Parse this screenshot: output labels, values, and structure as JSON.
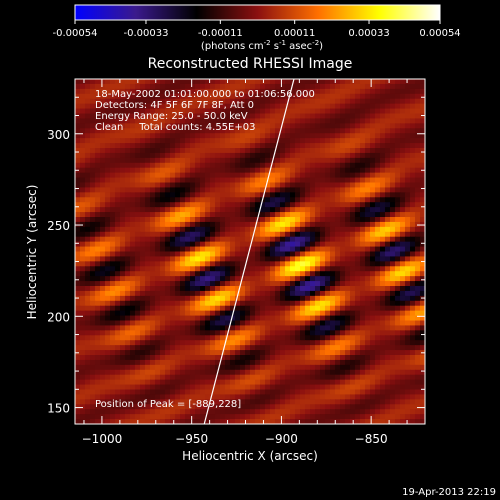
{
  "chart_data": {
    "type": "heatmap",
    "title": "Reconstructed RHESSI Image",
    "xlabel": "Heliocentric X (arcsec)",
    "ylabel": "Heliocentric Y (arcsec)",
    "xlim": [
      -1015,
      -820
    ],
    "ylim": [
      141,
      330
    ],
    "xticks": [
      -1000,
      -950,
      -900,
      -850
    ],
    "yticks": [
      150,
      200,
      250,
      300
    ],
    "colorbar": {
      "ticks": [
        "-0.00054",
        "-0.00033",
        "-0.00011",
        "0.00011",
        "0.00033",
        "0.00054"
      ],
      "values": [
        -0.00054,
        -0.00033,
        -0.00011,
        0.00011,
        0.00033,
        0.00054
      ],
      "range": [
        -0.00054,
        0.00054
      ],
      "units_text": "(photons cm",
      "units_exp1": "-2",
      "units_s": " s",
      "units_exp2": "-1",
      "units_asec": " asec",
      "units_exp3": "-2",
      "units_close": ")",
      "colormap": [
        "#0000ff",
        "#3a1a8c",
        "#000000",
        "#8b1010",
        "#ff7000",
        "#ffff00",
        "#ffffff"
      ]
    },
    "annotations": [
      "18-May-2002 01:01:00.000 to 01:06:56.000",
      "Detectors: 4F 5F 6F 7F 8F, Att 0",
      "Energy Range: 25.0 - 50.0 keV",
      "Clean     Total counts: 4.55E+03"
    ],
    "peak_label": "Position of Peak = [-889,228]",
    "peak": [
      -889,
      228
    ],
    "limb_points": [
      [
        -943,
        141
      ],
      [
        -893,
        330
      ]
    ],
    "limb_color": "#ffffff",
    "footer": "19-Apr-2013 22:19",
    "pattern": {
      "fringe_angle_deg": 22,
      "fringe_period_arcsec": 25,
      "blob_period_arcsec": 52,
      "envelope_center": [
        -895,
        228
      ],
      "envelope_sigma": [
        90,
        38
      ]
    }
  }
}
